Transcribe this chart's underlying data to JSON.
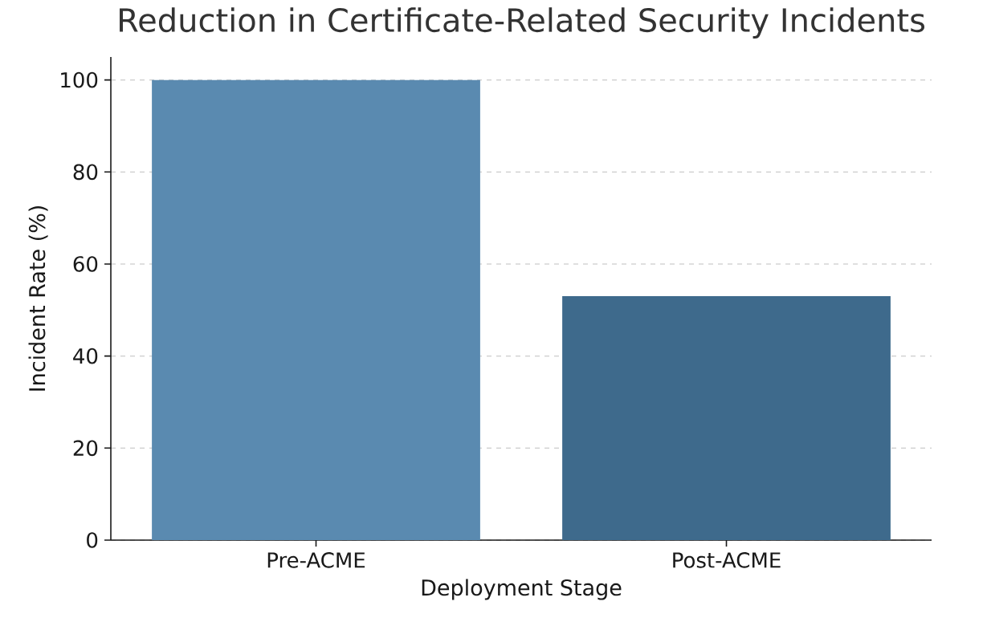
{
  "chart_data": {
    "type": "bar",
    "title": "Reduction in Certificate-Related Security Incidents",
    "xlabel": "Deployment Stage",
    "ylabel": "Incident Rate (%)",
    "categories": [
      "Pre-ACME",
      "Post-ACME"
    ],
    "values": [
      100,
      53
    ],
    "colors": [
      "#5a8ab0",
      "#3e6a8c"
    ],
    "ylim": [
      0,
      105
    ],
    "yticks": [
      0,
      20,
      40,
      60,
      80,
      100
    ],
    "grid": "y"
  }
}
